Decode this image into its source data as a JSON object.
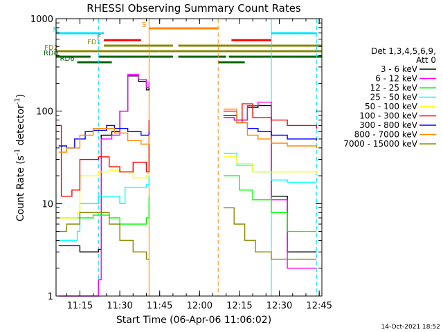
{
  "chart_data": {
    "type": "line",
    "title": "RHESSI Observing Summary Count Rates",
    "xlabel": "Start Time (06-Apr-06 11:06:02)",
    "ylabel": "Count Rate (s⁻¹ detector⁻¹)",
    "ylabel_main": "Count Rate (s",
    "ylabel_sup1": "-1",
    "ylabel_mid": " detector",
    "ylabel_sup2": "-1",
    "ylabel_end": ")",
    "yscale": "log",
    "ylim": [
      1,
      1000
    ],
    "xlim": [
      "11:06:02",
      "12:46:00"
    ],
    "x_ticks": [
      "11:15",
      "11:30",
      "11:45",
      "12:00",
      "12:15",
      "12:30",
      "12:45"
    ],
    "y_ticks": [
      {
        "value": 1,
        "label": "1"
      },
      {
        "value": 10,
        "label": "10"
      },
      {
        "value": 100,
        "label": "100"
      },
      {
        "value": 1000,
        "label": "1000"
      }
    ],
    "grid": false,
    "legend_position": "right",
    "legend_title_line1": "Det 1,3,4,5,6,9,",
    "legend_title_line2": "Att 0",
    "timestamp": "14-Oct-2021 18:52",
    "flag_bars": [
      {
        "label": "N",
        "color": "#00e5ff",
        "segments": [
          [
            "11:06",
            "11:24"
          ],
          [
            "12:27",
            "12:44"
          ]
        ]
      },
      {
        "label": "S",
        "color": "#ff8800",
        "segments": [
          [
            "11:41",
            "12:07"
          ]
        ]
      },
      {
        "label": "F",
        "color": "#ff0000",
        "segments": [
          [
            "11:24",
            "11:38"
          ],
          [
            "12:12",
            "12:27"
          ]
        ]
      },
      {
        "label": "FD1",
        "color": "#888800",
        "segments": [
          [
            "11:24",
            "11:50"
          ],
          [
            "11:52",
            "12:46"
          ]
        ]
      },
      {
        "label": "FD2",
        "color": "#888800",
        "segments": [
          [
            "11:06",
            "11:45"
          ],
          [
            "11:45",
            "12:46"
          ]
        ]
      },
      {
        "label": "RD0",
        "color": "#006400",
        "segments": [
          [
            "11:06",
            "11:19"
          ],
          [
            "11:22",
            "11:50"
          ],
          [
            "11:52",
            "12:10"
          ],
          [
            "12:11",
            "12:46"
          ]
        ]
      },
      {
        "label": "RD6",
        "color": "#006400",
        "segments": [
          [
            "11:14",
            "11:27"
          ],
          [
            "12:07",
            "12:17"
          ]
        ]
      }
    ],
    "vertical_markers": [
      {
        "time": "11:06",
        "color": "#00e5ff",
        "style": "solid"
      },
      {
        "time": "11:22",
        "color": "#00e5ff",
        "style": "dashed"
      },
      {
        "time": "11:41",
        "color": "#ff8800",
        "style": "solid"
      },
      {
        "time": "12:07",
        "color": "#ff8800",
        "style": "dashed"
      },
      {
        "time": "12:27",
        "color": "#00e5ff",
        "style": "solid"
      },
      {
        "time": "12:44",
        "color": "#00e5ff",
        "style": "dashed"
      }
    ],
    "series": [
      {
        "name": "3 - 6 keV",
        "color": "#000000",
        "points": [
          [
            "11:07",
            3.5
          ],
          [
            "11:15",
            3.0
          ],
          [
            "11:22",
            3.2
          ],
          [
            "11:23",
            55
          ],
          [
            "11:27",
            60
          ],
          [
            "11:30",
            100
          ],
          [
            "11:33",
            240
          ],
          [
            "11:37",
            210
          ],
          [
            "11:40",
            170
          ],
          [
            "11:41",
            200
          ],
          [
            "12:09",
            85
          ],
          [
            "12:13",
            80
          ],
          [
            "12:18",
            110
          ],
          [
            "12:22",
            115
          ],
          [
            "12:27",
            12
          ],
          [
            "12:33",
            3.0
          ],
          [
            "12:44",
            3.0
          ]
        ]
      },
      {
        "name": "6 - 12 keV",
        "color": "#ff00ff",
        "points": [
          [
            "11:07",
            1.0
          ],
          [
            "11:20",
            1.0
          ],
          [
            "11:22",
            1.5
          ],
          [
            "11:23",
            50
          ],
          [
            "11:27",
            55
          ],
          [
            "11:30",
            100
          ],
          [
            "11:33",
            250
          ],
          [
            "11:37",
            220
          ],
          [
            "11:40",
            180
          ],
          [
            "11:41",
            210
          ],
          [
            "12:09",
            85
          ],
          [
            "12:13",
            80
          ],
          [
            "12:18",
            115
          ],
          [
            "12:22",
            125
          ],
          [
            "12:27",
            11
          ],
          [
            "12:33",
            2.0
          ],
          [
            "12:44",
            2.0
          ]
        ]
      },
      {
        "name": "12 - 25 keV",
        "color": "#00ff00",
        "points": [
          [
            "11:07",
            7
          ],
          [
            "11:15",
            7
          ],
          [
            "11:20",
            7.5
          ],
          [
            "11:26",
            7
          ],
          [
            "11:30",
            6
          ],
          [
            "11:35",
            6
          ],
          [
            "11:40",
            7
          ],
          [
            "11:41",
            12
          ],
          [
            "12:09",
            20
          ],
          [
            "12:15",
            14
          ],
          [
            "12:20",
            11
          ],
          [
            "12:27",
            8
          ],
          [
            "12:33",
            5
          ],
          [
            "12:44",
            5
          ]
        ]
      },
      {
        "name": "25 - 50 keV",
        "color": "#00ffff",
        "points": [
          [
            "11:07",
            4
          ],
          [
            "11:14",
            5
          ],
          [
            "11:15",
            10
          ],
          [
            "11:22",
            12
          ],
          [
            "11:26",
            12
          ],
          [
            "11:30",
            10
          ],
          [
            "11:32",
            15
          ],
          [
            "11:40",
            16
          ],
          [
            "11:41",
            28
          ],
          [
            "12:09",
            35
          ],
          [
            "12:14",
            26
          ],
          [
            "12:20",
            22
          ],
          [
            "12:27",
            18
          ],
          [
            "12:33",
            17
          ],
          [
            "12:44",
            17
          ]
        ]
      },
      {
        "name": "50 - 100 keV",
        "color": "#ffff00",
        "points": [
          [
            "11:07",
            7
          ],
          [
            "11:14",
            8
          ],
          [
            "11:15",
            20
          ],
          [
            "11:22",
            22
          ],
          [
            "11:26",
            23
          ],
          [
            "11:30",
            22
          ],
          [
            "11:35",
            19
          ],
          [
            "11:40",
            20
          ],
          [
            "11:41",
            70
          ],
          [
            "12:09",
            32
          ],
          [
            "12:14",
            27
          ],
          [
            "12:20",
            22
          ],
          [
            "12:27",
            22
          ],
          [
            "12:33",
            22
          ],
          [
            "12:44",
            21
          ]
        ]
      },
      {
        "name": "100 - 300 keV",
        "color": "#ff0000",
        "points": [
          [
            "11:07",
            70
          ],
          [
            "11:08",
            12
          ],
          [
            "11:12",
            14
          ],
          [
            "11:15",
            30
          ],
          [
            "11:22",
            32
          ],
          [
            "11:26",
            25
          ],
          [
            "11:30",
            22
          ],
          [
            "11:35",
            28
          ],
          [
            "11:40",
            22
          ],
          [
            "11:41",
            80
          ],
          [
            "12:09",
            100
          ],
          [
            "12:14",
            75
          ],
          [
            "12:16",
            120
          ],
          [
            "12:20",
            85
          ],
          [
            "12:27",
            80
          ],
          [
            "12:33",
            70
          ],
          [
            "12:44",
            65
          ]
        ]
      },
      {
        "name": "300 - 800 keV",
        "color": "#0000ff",
        "points": [
          [
            "11:07",
            42
          ],
          [
            "11:10",
            40
          ],
          [
            "11:13",
            50
          ],
          [
            "11:17",
            60
          ],
          [
            "11:20",
            62
          ],
          [
            "11:25",
            70
          ],
          [
            "11:28",
            65
          ],
          [
            "11:33",
            60
          ],
          [
            "11:38",
            55
          ],
          [
            "11:41",
            60
          ],
          [
            "12:09",
            90
          ],
          [
            "12:14",
            75
          ],
          [
            "12:18",
            65
          ],
          [
            "12:22",
            60
          ],
          [
            "12:27",
            55
          ],
          [
            "12:33",
            50
          ],
          [
            "12:44",
            48
          ]
        ]
      },
      {
        "name": "800 - 7000 keV",
        "color": "#ff8800",
        "points": [
          [
            "11:07",
            36
          ],
          [
            "11:10",
            40
          ],
          [
            "11:15",
            55
          ],
          [
            "11:20",
            65
          ],
          [
            "11:24",
            65
          ],
          [
            "11:28",
            58
          ],
          [
            "11:33",
            48
          ],
          [
            "11:38",
            44
          ],
          [
            "11:41",
            55
          ],
          [
            "12:09",
            105
          ],
          [
            "12:14",
            75
          ],
          [
            "12:18",
            55
          ],
          [
            "12:22",
            50
          ],
          [
            "12:27",
            45
          ],
          [
            "12:33",
            42
          ],
          [
            "12:44",
            40
          ]
        ]
      },
      {
        "name": "7000 - 15000 keV",
        "color": "#888800",
        "points": [
          [
            "11:07",
            5
          ],
          [
            "11:10",
            6
          ],
          [
            "11:15",
            8
          ],
          [
            "11:22",
            8
          ],
          [
            "11:26",
            6
          ],
          [
            "11:30",
            4
          ],
          [
            "11:35",
            3
          ],
          [
            "11:40",
            2.5
          ],
          [
            "11:41",
            2.5
          ],
          [
            "12:09",
            9
          ],
          [
            "12:13",
            6
          ],
          [
            "12:17",
            4
          ],
          [
            "12:21",
            3
          ],
          [
            "12:27",
            2.5
          ],
          [
            "12:33",
            2.5
          ],
          [
            "12:44",
            2.5
          ]
        ]
      }
    ]
  }
}
